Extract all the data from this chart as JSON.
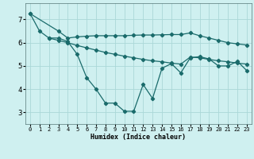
{
  "bg_color": "#cff0f0",
  "grid_color": "#aad8d8",
  "line_color": "#1a6b6b",
  "xlabel": "Humidex (Indice chaleur)",
  "xlim": [
    -0.5,
    23.5
  ],
  "ylim": [
    2.5,
    7.7
  ],
  "yticks": [
    3,
    4,
    5,
    6,
    7
  ],
  "xticks": [
    0,
    1,
    2,
    3,
    4,
    5,
    6,
    7,
    8,
    9,
    10,
    11,
    12,
    13,
    14,
    15,
    16,
    17,
    18,
    19,
    20,
    21,
    22,
    23
  ],
  "line1_x": [
    0,
    1,
    2,
    3,
    4,
    5,
    6,
    7,
    8,
    9,
    10,
    11,
    12,
    13,
    14,
    15,
    16,
    17,
    18,
    19,
    20,
    21,
    22,
    23
  ],
  "line1_y": [
    7.25,
    6.5,
    6.2,
    6.2,
    6.05,
    5.5,
    4.5,
    4.0,
    3.4,
    3.4,
    3.05,
    3.05,
    4.2,
    3.6,
    4.9,
    5.1,
    4.7,
    5.35,
    5.4,
    5.3,
    5.0,
    5.0,
    5.2,
    4.8
  ],
  "line2_x": [
    0,
    3,
    4,
    5,
    6,
    7,
    8,
    9,
    10,
    11,
    12,
    13,
    14,
    15,
    16,
    17,
    18,
    19,
    20,
    21,
    22,
    23
  ],
  "line2_y": [
    7.25,
    6.5,
    6.2,
    6.25,
    6.28,
    6.3,
    6.3,
    6.3,
    6.3,
    6.32,
    6.33,
    6.33,
    6.34,
    6.35,
    6.35,
    6.42,
    6.3,
    6.2,
    6.1,
    6.0,
    5.95,
    5.9
  ],
  "line3_x": [
    2,
    3,
    4,
    5,
    6,
    7,
    8,
    9,
    10,
    11,
    12,
    13,
    14,
    15,
    16,
    17,
    18,
    19,
    20,
    21,
    22,
    23
  ],
  "line3_y": [
    6.2,
    6.1,
    6.0,
    5.88,
    5.78,
    5.68,
    5.58,
    5.5,
    5.42,
    5.35,
    5.28,
    5.22,
    5.18,
    5.12,
    5.08,
    5.38,
    5.35,
    5.28,
    5.22,
    5.18,
    5.12,
    5.08
  ]
}
